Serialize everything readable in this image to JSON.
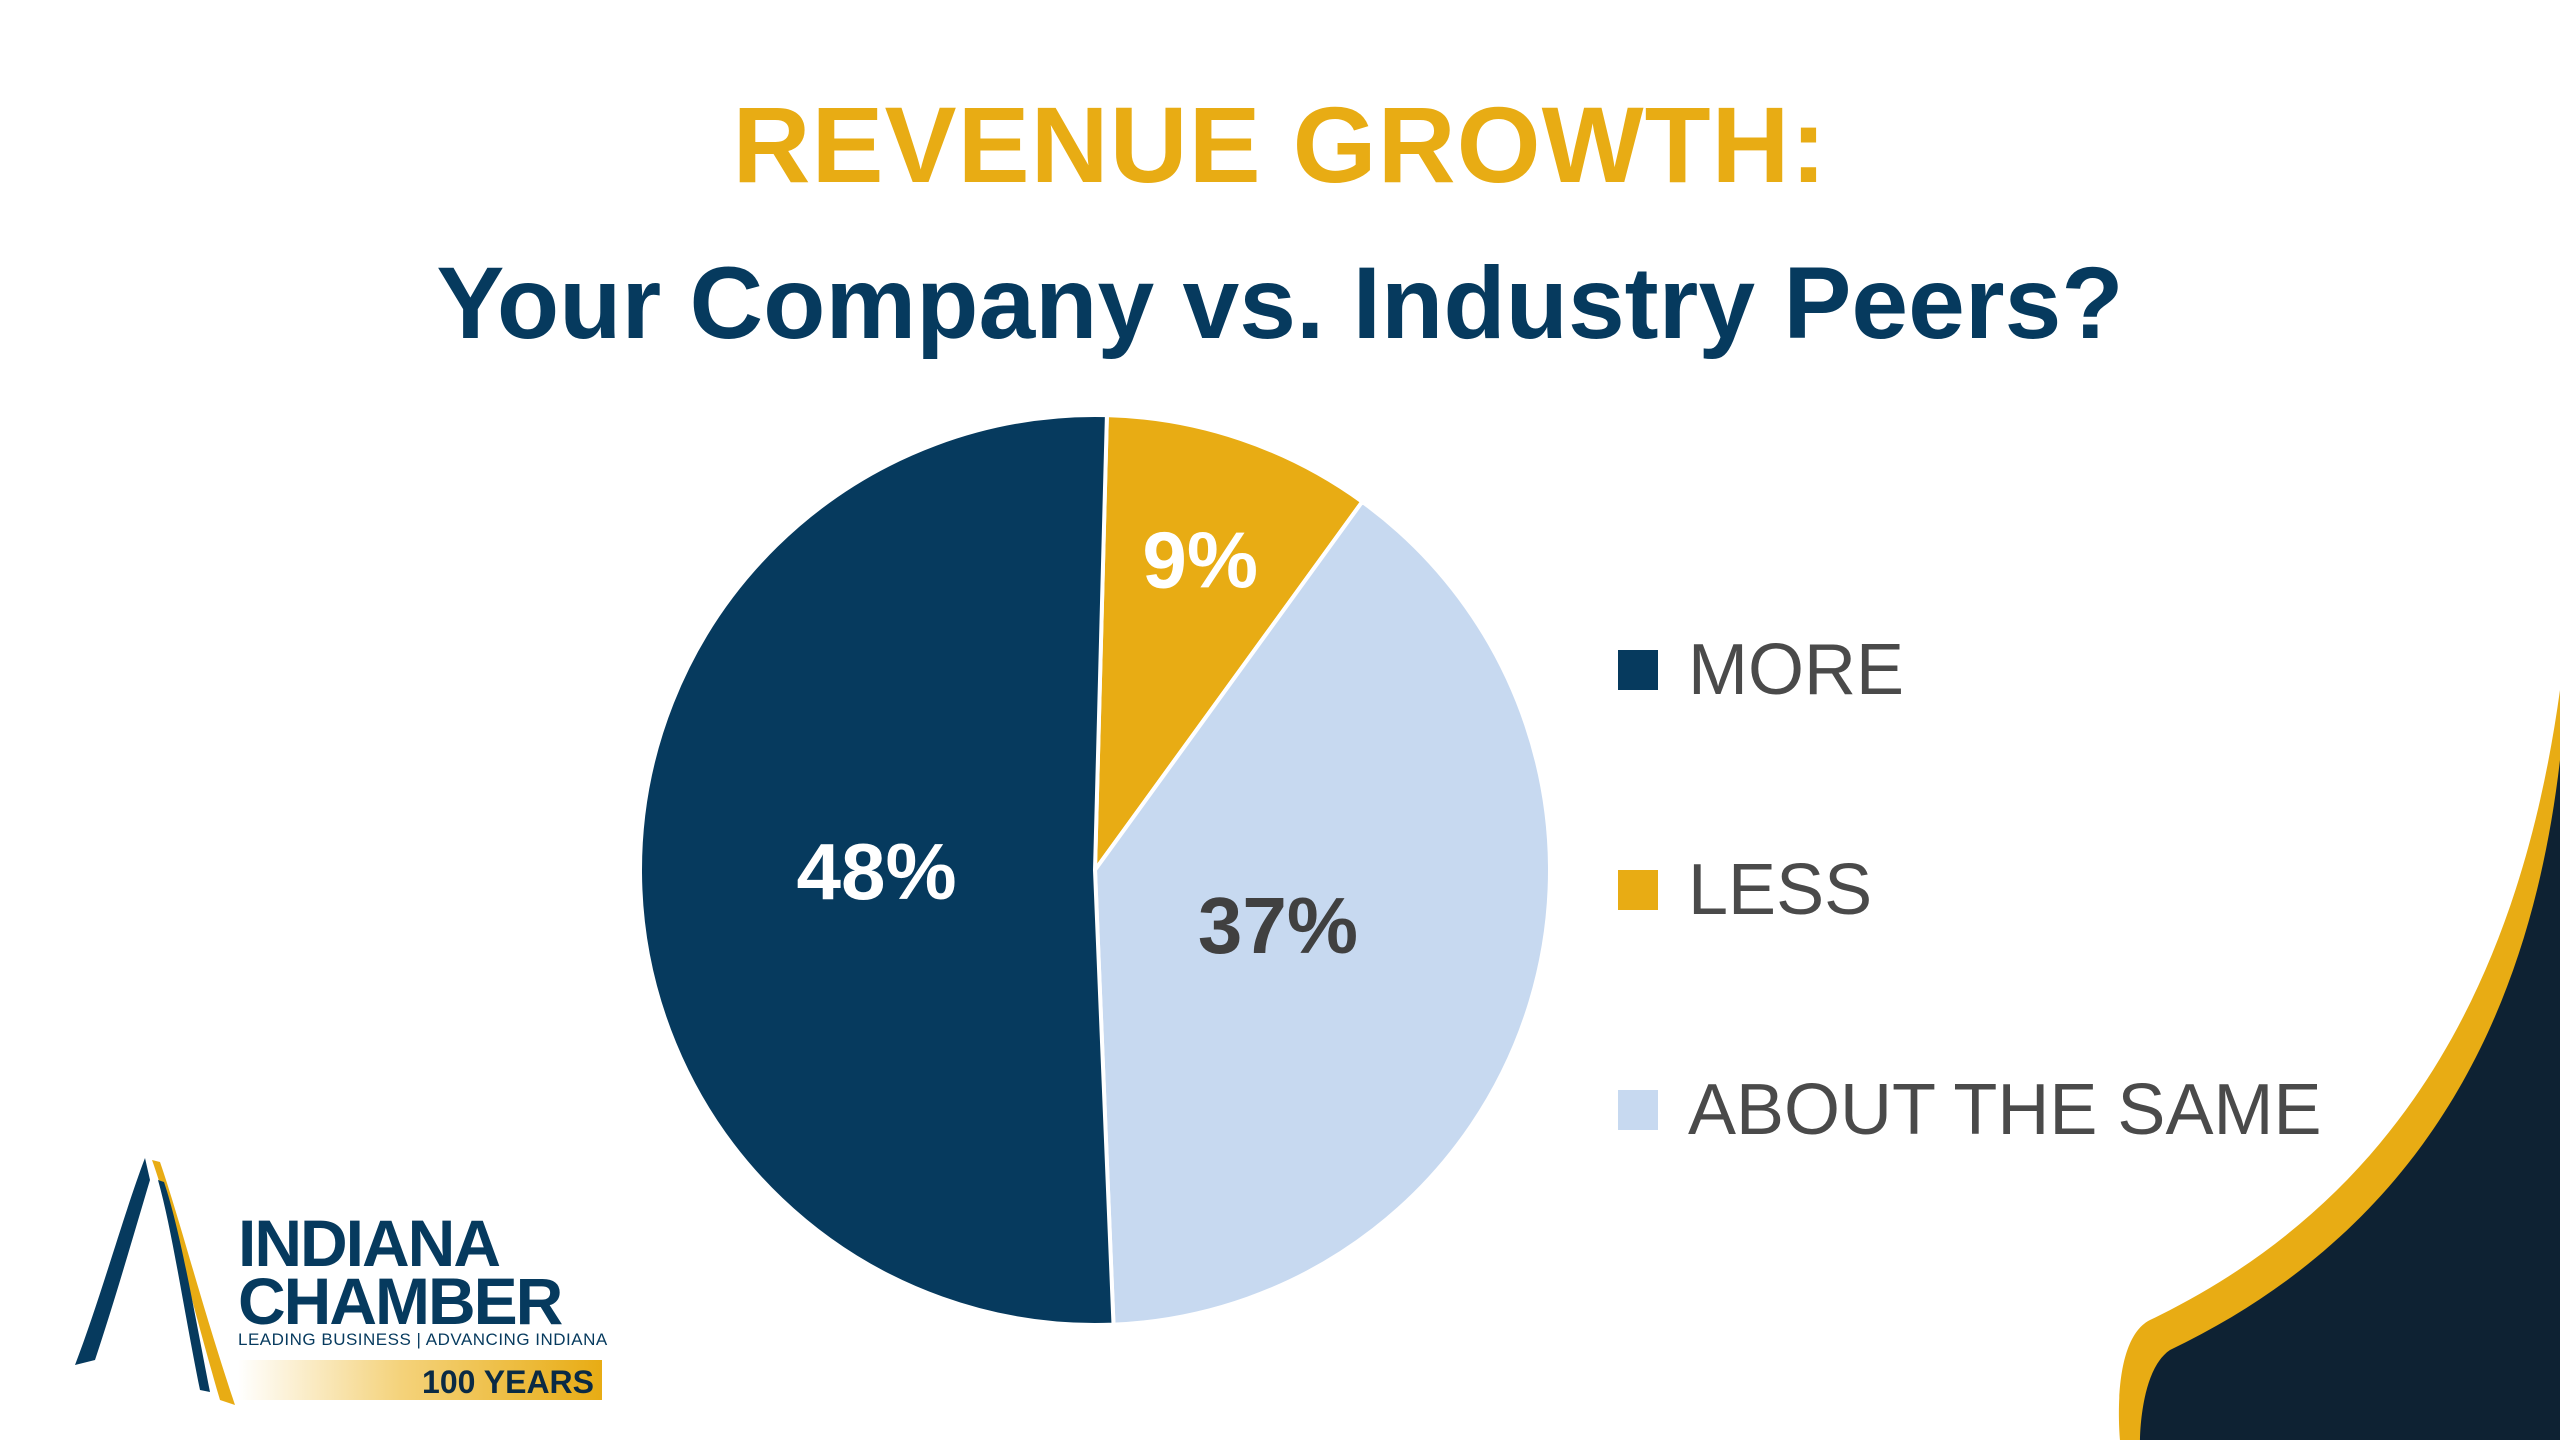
{
  "slide": {
    "title_line1": "REVENUE GROWTH:",
    "title_line2": "Your Company vs. Industry Peers?"
  },
  "chart_data": {
    "type": "pie",
    "title": "REVENUE GROWTH:",
    "subtitle": "Your Company vs. Industry Peers?",
    "categories": [
      "MORE",
      "LESS",
      "ABOUT THE SAME"
    ],
    "values": [
      48,
      9,
      37
    ],
    "value_labels": [
      "48%",
      "9%",
      "37%"
    ],
    "colors": [
      "#063a5e",
      "#e8ac14",
      "#c7d9f0"
    ],
    "label_colors": [
      "#ffffff",
      "#ffffff",
      "#404040"
    ],
    "legend_position": "right"
  },
  "logo": {
    "line1": "INDIANA",
    "line2": "CHAMBER",
    "tagline": "LEADING BUSINESS | ADVANCING INDIANA",
    "years": "100 YEARS"
  },
  "colors": {
    "navy": "#063a5e",
    "gold": "#e8ac14",
    "light_blue": "#c7d9f0",
    "corner_dark": "#0e2233"
  }
}
